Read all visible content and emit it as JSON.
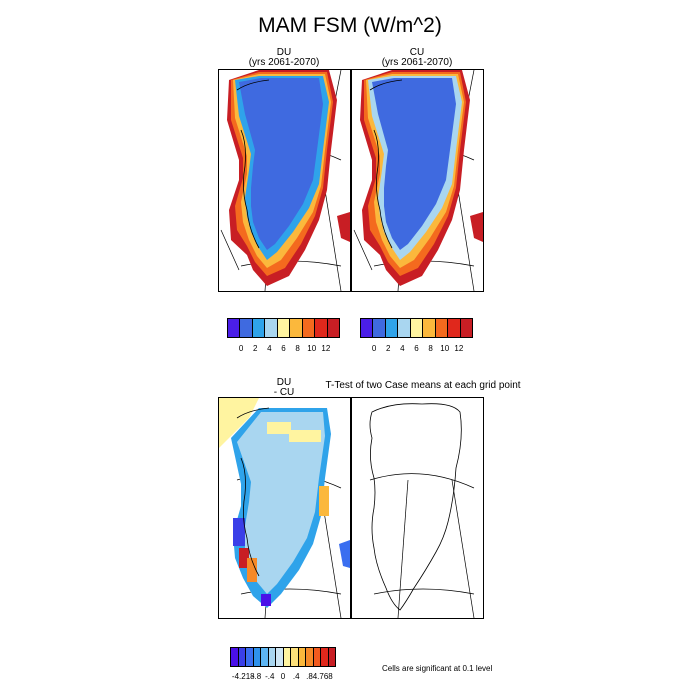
{
  "figure": {
    "title": "MAM FSM (W/m^2)"
  },
  "panels": [
    {
      "title_line1": "DU",
      "title_line2": "(yrs 2061-2070)"
    },
    {
      "title_line1": "CU",
      "title_line2": "(yrs 2061-2070)"
    },
    {
      "title_line1": "DU",
      "title_line2": "- CU"
    },
    {
      "title_line1": "T-Test of two Case means at each grid point",
      "title_line2": ""
    }
  ],
  "colorbar_abs": {
    "colors": [
      "#4a1ee8",
      "#3f6ae0",
      "#2fa3ea",
      "#a9d6f0",
      "#fff4a0",
      "#fbb83c",
      "#f46a1e",
      "#e0281c",
      "#c81e24"
    ],
    "tick_labels": [
      "0",
      "2",
      "4",
      "6",
      "8",
      "10",
      "12"
    ]
  },
  "colorbar_diff": {
    "colors": [
      "#4a10e8",
      "#3a3fe8",
      "#3a6ef0",
      "#2f92ec",
      "#5db6f4",
      "#a9d6f0",
      "#cfe6f4",
      "#fff4a0",
      "#fde07a",
      "#fbb83c",
      "#f68a28",
      "#f25a1e",
      "#e0281c",
      "#c81e24"
    ],
    "tick_labels": [
      "-4.218",
      "-.8",
      "-.4",
      "0",
      ".4",
      ".8",
      "4.768"
    ]
  },
  "footnote": "Cells are significant at 0.1 level"
}
